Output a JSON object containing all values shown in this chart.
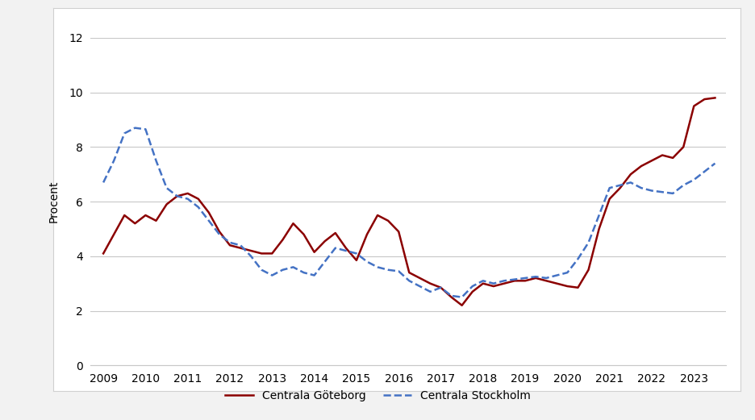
{
  "ylabel": "Procent",
  "xlim": [
    2008.7,
    2023.75
  ],
  "ylim": [
    0,
    12
  ],
  "yticks": [
    0,
    2,
    4,
    6,
    8,
    10,
    12
  ],
  "xticks": [
    2009,
    2010,
    2011,
    2012,
    2013,
    2014,
    2015,
    2016,
    2017,
    2018,
    2019,
    2020,
    2021,
    2022,
    2023
  ],
  "goteborg": {
    "x": [
      2009.0,
      2009.25,
      2009.5,
      2009.75,
      2010.0,
      2010.25,
      2010.5,
      2010.75,
      2011.0,
      2011.25,
      2011.5,
      2011.75,
      2012.0,
      2012.25,
      2012.5,
      2012.75,
      2013.0,
      2013.25,
      2013.5,
      2013.75,
      2014.0,
      2014.25,
      2014.5,
      2014.75,
      2015.0,
      2015.25,
      2015.5,
      2015.75,
      2016.0,
      2016.25,
      2016.5,
      2016.75,
      2017.0,
      2017.25,
      2017.5,
      2017.75,
      2018.0,
      2018.25,
      2018.5,
      2018.75,
      2019.0,
      2019.25,
      2019.5,
      2019.75,
      2020.0,
      2020.25,
      2020.5,
      2020.75,
      2021.0,
      2021.25,
      2021.5,
      2021.75,
      2022.0,
      2022.25,
      2022.5,
      2022.75,
      2023.0,
      2023.25,
      2023.5
    ],
    "y": [
      4.1,
      4.8,
      5.5,
      5.2,
      5.5,
      5.3,
      5.9,
      6.2,
      6.3,
      6.1,
      5.6,
      4.9,
      4.4,
      4.3,
      4.2,
      4.1,
      4.1,
      4.6,
      5.2,
      4.8,
      4.15,
      4.55,
      4.85,
      4.3,
      3.85,
      4.8,
      5.5,
      5.3,
      4.9,
      3.4,
      3.2,
      3.0,
      2.85,
      2.5,
      2.2,
      2.7,
      3.0,
      2.9,
      3.0,
      3.1,
      3.1,
      3.2,
      3.1,
      3.0,
      2.9,
      2.85,
      3.5,
      5.0,
      6.1,
      6.5,
      7.0,
      7.3,
      7.5,
      7.7,
      7.6,
      8.0,
      9.5,
      9.75,
      9.8
    ],
    "color": "#8B0000",
    "linewidth": 1.8,
    "linestyle": "-",
    "label": "Centrala Göteborg"
  },
  "stockholm": {
    "x": [
      2009.0,
      2009.25,
      2009.5,
      2009.75,
      2010.0,
      2010.25,
      2010.5,
      2010.75,
      2011.0,
      2011.25,
      2011.5,
      2011.75,
      2012.0,
      2012.25,
      2012.5,
      2012.75,
      2013.0,
      2013.25,
      2013.5,
      2013.75,
      2014.0,
      2014.25,
      2014.5,
      2014.75,
      2015.0,
      2015.25,
      2015.5,
      2015.75,
      2016.0,
      2016.25,
      2016.5,
      2016.75,
      2017.0,
      2017.25,
      2017.5,
      2017.75,
      2018.0,
      2018.25,
      2018.5,
      2018.75,
      2019.0,
      2019.25,
      2019.5,
      2019.75,
      2020.0,
      2020.25,
      2020.5,
      2020.75,
      2021.0,
      2021.25,
      2021.5,
      2021.75,
      2022.0,
      2022.25,
      2022.5,
      2022.75,
      2023.0,
      2023.25,
      2023.5
    ],
    "y": [
      6.7,
      7.5,
      8.5,
      8.7,
      8.65,
      7.5,
      6.5,
      6.2,
      6.1,
      5.8,
      5.3,
      4.8,
      4.5,
      4.4,
      4.0,
      3.5,
      3.3,
      3.5,
      3.6,
      3.4,
      3.3,
      3.8,
      4.3,
      4.2,
      4.1,
      3.8,
      3.6,
      3.5,
      3.45,
      3.1,
      2.9,
      2.7,
      2.85,
      2.55,
      2.5,
      2.9,
      3.1,
      3.0,
      3.1,
      3.15,
      3.2,
      3.25,
      3.2,
      3.3,
      3.4,
      3.9,
      4.5,
      5.5,
      6.5,
      6.6,
      6.7,
      6.5,
      6.4,
      6.35,
      6.3,
      6.6,
      6.8,
      7.1,
      7.4
    ],
    "color": "#4472C4",
    "linewidth": 1.8,
    "linestyle": "--",
    "label": "Centrala Stockholm"
  },
  "background_color": "#ffffff",
  "outer_bg": "#f2f2f2",
  "grid_color": "#c8c8c8",
  "border_color": "#d0d0d0",
  "legend_fontsize": 10,
  "axis_fontsize": 10,
  "ylabel_fontsize": 10
}
